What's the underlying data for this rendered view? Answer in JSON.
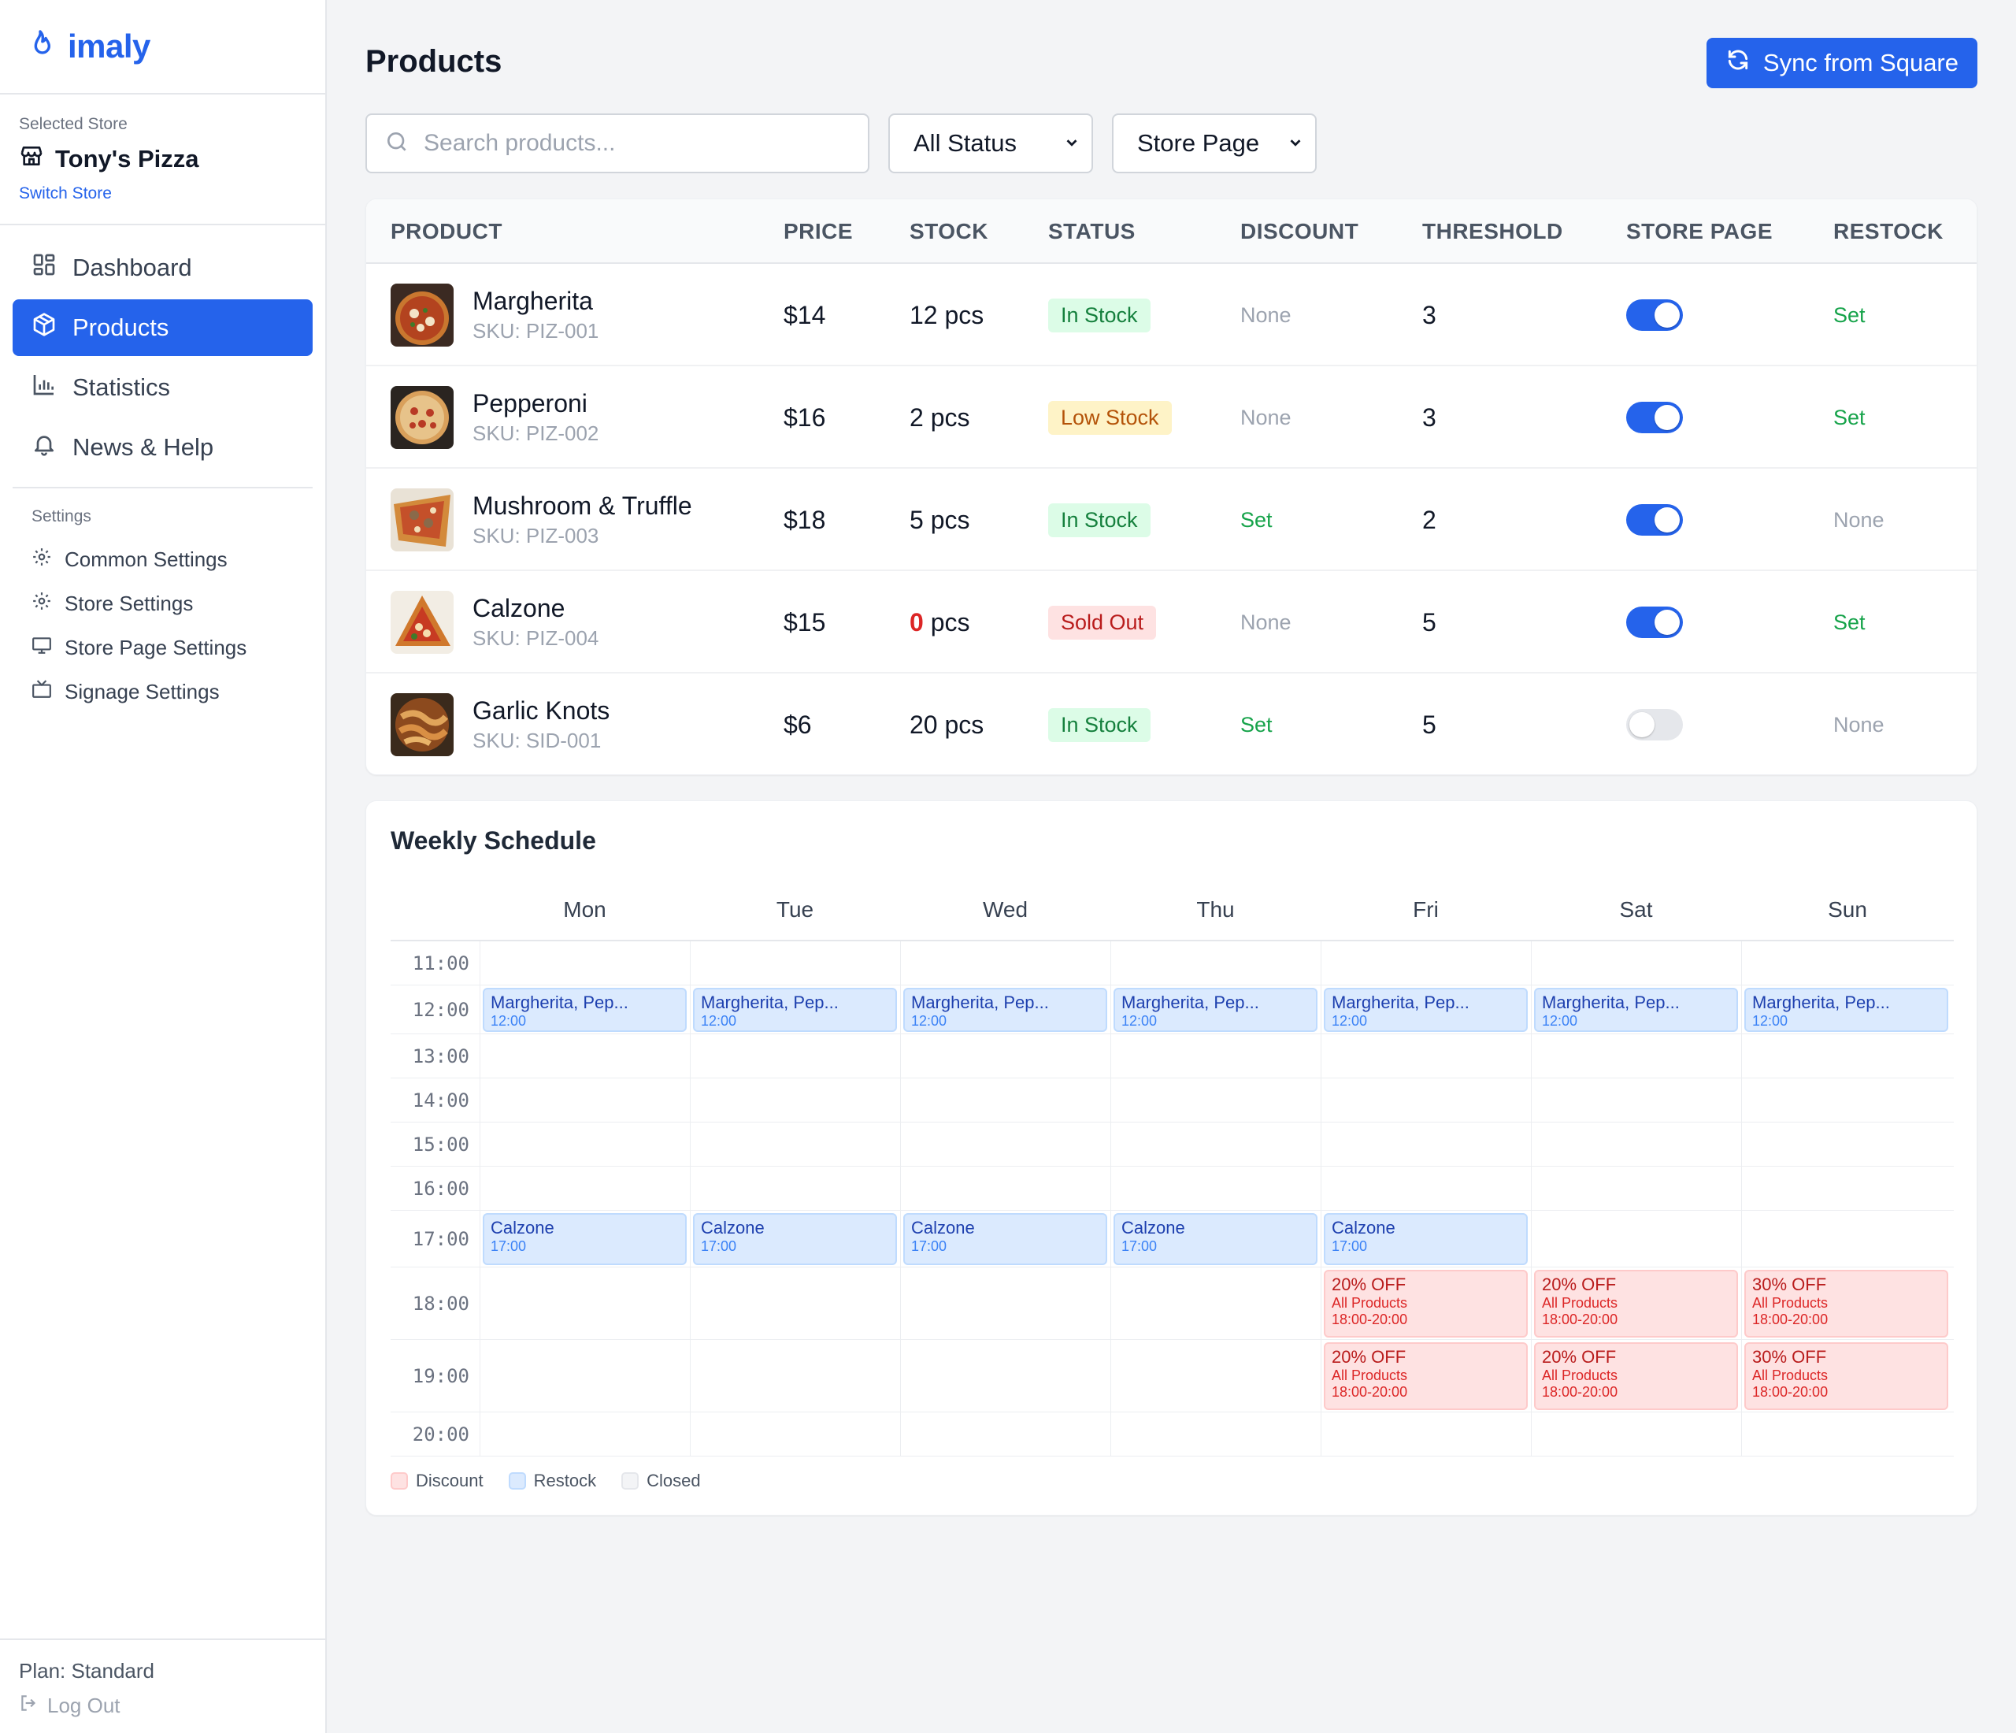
{
  "app": {
    "name": "imaly"
  },
  "store": {
    "caption": "Selected Store",
    "name": "Tony's Pizza",
    "switch_label": "Switch Store"
  },
  "nav": [
    {
      "label": "Dashboard",
      "icon": "dashboard-icon",
      "active": false
    },
    {
      "label": "Products",
      "icon": "box-icon",
      "active": true
    },
    {
      "label": "Statistics",
      "icon": "bar-chart-icon",
      "active": false
    },
    {
      "label": "News & Help",
      "icon": "bell-icon",
      "active": false
    }
  ],
  "settings": {
    "caption": "Settings",
    "items": [
      {
        "label": "Common Settings",
        "icon": "gear-icon"
      },
      {
        "label": "Store Settings",
        "icon": "gear-icon"
      },
      {
        "label": "Store Page Settings",
        "icon": "monitor-icon"
      },
      {
        "label": "Signage Settings",
        "icon": "tv-icon"
      }
    ]
  },
  "footer": {
    "plan": "Plan: Standard",
    "logout": "Log Out"
  },
  "header": {
    "title": "Products",
    "sync_label": "Sync from Square"
  },
  "filters": {
    "search_placeholder": "Search products...",
    "status": "All Status",
    "page": "Store Page"
  },
  "table": {
    "columns": [
      "PRODUCT",
      "PRICE",
      "STOCK",
      "STATUS",
      "DISCOUNT",
      "THRESHOLD",
      "STORE PAGE",
      "RESTOCK"
    ],
    "rows": [
      {
        "name": "Margherita",
        "sku": "SKU: PIZ-001",
        "price": "$14",
        "stock": "12",
        "unit": "pcs",
        "status": "In Stock",
        "status_kind": "in",
        "discount": "None",
        "threshold": "3",
        "store_page": true,
        "restock": "Set"
      },
      {
        "name": "Pepperoni",
        "sku": "SKU: PIZ-002",
        "price": "$16",
        "stock": "2",
        "unit": "pcs",
        "status": "Low Stock",
        "status_kind": "low",
        "discount": "None",
        "threshold": "3",
        "store_page": true,
        "restock": "Set"
      },
      {
        "name": "Mushroom & Truffle",
        "sku": "SKU: PIZ-003",
        "price": "$18",
        "stock": "5",
        "unit": "pcs",
        "status": "In Stock",
        "status_kind": "in",
        "discount": "Set",
        "threshold": "2",
        "store_page": true,
        "restock": "None"
      },
      {
        "name": "Calzone",
        "sku": "SKU: PIZ-004",
        "price": "$15",
        "stock": "0",
        "unit": "pcs",
        "status": "Sold Out",
        "status_kind": "out",
        "discount": "None",
        "threshold": "5",
        "store_page": true,
        "restock": "Set"
      },
      {
        "name": "Garlic Knots",
        "sku": "SKU: SID-001",
        "price": "$6",
        "stock": "20",
        "unit": "pcs",
        "status": "In Stock",
        "status_kind": "in",
        "discount": "Set",
        "threshold": "5",
        "store_page": false,
        "restock": "None"
      }
    ]
  },
  "schedule": {
    "title": "Weekly Schedule",
    "days": [
      "Mon",
      "Tue",
      "Wed",
      "Thu",
      "Fri",
      "Sat",
      "Sun"
    ],
    "times": [
      "11:00",
      "12:00",
      "13:00",
      "14:00",
      "15:00",
      "16:00",
      "17:00",
      "18:00",
      "19:00",
      "20:00"
    ],
    "events": [
      {
        "day": 0,
        "time": "12:00",
        "kind": "restock",
        "title": "Margherita, Pep...",
        "sub": "12:00"
      },
      {
        "day": 1,
        "time": "12:00",
        "kind": "restock",
        "title": "Margherita, Pep...",
        "sub": "12:00"
      },
      {
        "day": 2,
        "time": "12:00",
        "kind": "restock",
        "title": "Margherita, Pep...",
        "sub": "12:00"
      },
      {
        "day": 3,
        "time": "12:00",
        "kind": "restock",
        "title": "Margherita, Pep...",
        "sub": "12:00"
      },
      {
        "day": 4,
        "time": "12:00",
        "kind": "restock",
        "title": "Margherita, Pep...",
        "sub": "12:00"
      },
      {
        "day": 5,
        "time": "12:00",
        "kind": "restock",
        "title": "Margherita, Pep...",
        "sub": "12:00"
      },
      {
        "day": 6,
        "time": "12:00",
        "kind": "restock",
        "title": "Margherita, Pep...",
        "sub": "12:00"
      },
      {
        "day": 0,
        "time": "17:00",
        "kind": "restock",
        "title": "Calzone",
        "sub": "17:00"
      },
      {
        "day": 1,
        "time": "17:00",
        "kind": "restock",
        "title": "Calzone",
        "sub": "17:00"
      },
      {
        "day": 2,
        "time": "17:00",
        "kind": "restock",
        "title": "Calzone",
        "sub": "17:00"
      },
      {
        "day": 3,
        "time": "17:00",
        "kind": "restock",
        "title": "Calzone",
        "sub": "17:00"
      },
      {
        "day": 4,
        "time": "17:00",
        "kind": "restock",
        "title": "Calzone",
        "sub": "17:00"
      },
      {
        "day": 4,
        "time": "18:00",
        "kind": "discount",
        "title": "20% OFF",
        "sub": "All Products",
        "range": "18:00-20:00"
      },
      {
        "day": 5,
        "time": "18:00",
        "kind": "discount",
        "title": "20% OFF",
        "sub": "All Products",
        "range": "18:00-20:00"
      },
      {
        "day": 6,
        "time": "18:00",
        "kind": "discount",
        "title": "30% OFF",
        "sub": "All Products",
        "range": "18:00-20:00"
      },
      {
        "day": 4,
        "time": "19:00",
        "kind": "discount",
        "title": "20% OFF",
        "sub": "All Products",
        "range": "18:00-20:00"
      },
      {
        "day": 5,
        "time": "19:00",
        "kind": "discount",
        "title": "20% OFF",
        "sub": "All Products",
        "range": "18:00-20:00"
      },
      {
        "day": 6,
        "time": "19:00",
        "kind": "discount",
        "title": "30% OFF",
        "sub": "All Products",
        "range": "18:00-20:00"
      }
    ],
    "legend": [
      "Discount",
      "Restock",
      "Closed"
    ]
  },
  "colors": {
    "accent": "#2563eb",
    "in_stock": "#15803d",
    "low_stock": "#b45309",
    "sold_out": "#b91c1c"
  }
}
